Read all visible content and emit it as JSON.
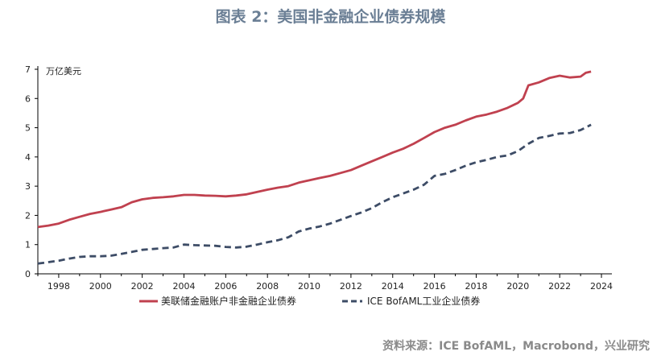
{
  "header": {
    "title": "图表 2：美国非金融企业债券规模"
  },
  "source": "资料来源：ICE BofAML，Macrobond，兴业研究",
  "colors": {
    "series1": "#c0414f",
    "series2": "#3d4c66",
    "axis": "#000000",
    "title": "#6b7f95"
  },
  "chart_data": {
    "type": "line",
    "title": "图表 2：美国非金融企业债券规模",
    "ylabel": "万亿美元",
    "xlabel": "",
    "xlim": [
      1997,
      2024.5
    ],
    "ylim": [
      0,
      7
    ],
    "yticks": [
      "0",
      "1",
      "2",
      "3",
      "4",
      "5",
      "6",
      "7"
    ],
    "xticks": [
      "1998",
      "2000",
      "2002",
      "2004",
      "2006",
      "2008",
      "2010",
      "2012",
      "2014",
      "2016",
      "2018",
      "2020",
      "2022",
      "2024"
    ],
    "grid": false,
    "legend_position": "bottom",
    "series": [
      {
        "name": "美联储金融账户非金融企业债券",
        "style": "solid",
        "x": [
          1997.0,
          1997.5,
          1998.0,
          1998.5,
          1999.0,
          1999.5,
          2000.0,
          2000.5,
          2001.0,
          2001.5,
          2002.0,
          2002.5,
          2003.0,
          2003.5,
          2004.0,
          2004.5,
          2005.0,
          2005.5,
          2006.0,
          2006.5,
          2007.0,
          2007.5,
          2008.0,
          2008.5,
          2009.0,
          2009.5,
          2010.0,
          2010.5,
          2011.0,
          2011.5,
          2012.0,
          2012.5,
          2013.0,
          2013.5,
          2014.0,
          2014.5,
          2015.0,
          2015.5,
          2016.0,
          2016.5,
          2017.0,
          2017.5,
          2018.0,
          2018.5,
          2019.0,
          2019.5,
          2020.0,
          2020.25,
          2020.5,
          2021.0,
          2021.5,
          2022.0,
          2022.5,
          2023.0,
          2023.25,
          2023.5
        ],
        "values": [
          1.6,
          1.65,
          1.72,
          1.85,
          1.95,
          2.05,
          2.12,
          2.2,
          2.28,
          2.45,
          2.55,
          2.6,
          2.62,
          2.65,
          2.7,
          2.7,
          2.68,
          2.67,
          2.65,
          2.68,
          2.72,
          2.8,
          2.88,
          2.95,
          3.0,
          3.12,
          3.2,
          3.28,
          3.35,
          3.45,
          3.55,
          3.7,
          3.85,
          4.0,
          4.15,
          4.28,
          4.45,
          4.65,
          4.85,
          5.0,
          5.1,
          5.25,
          5.38,
          5.45,
          5.55,
          5.68,
          5.85,
          6.0,
          6.45,
          6.55,
          6.7,
          6.78,
          6.72,
          6.75,
          6.88,
          6.92
        ]
      },
      {
        "name": "ICE BofAML工业企业债券",
        "style": "dashed",
        "x": [
          1997.0,
          1997.5,
          1998.0,
          1998.5,
          1999.0,
          1999.5,
          2000.0,
          2000.5,
          2001.0,
          2001.5,
          2002.0,
          2002.5,
          2003.0,
          2003.5,
          2004.0,
          2004.5,
          2005.0,
          2005.5,
          2006.0,
          2006.5,
          2007.0,
          2007.5,
          2008.0,
          2008.5,
          2009.0,
          2009.5,
          2010.0,
          2010.5,
          2011.0,
          2011.5,
          2012.0,
          2012.5,
          2013.0,
          2013.5,
          2014.0,
          2014.5,
          2015.0,
          2015.5,
          2016.0,
          2016.5,
          2017.0,
          2017.5,
          2018.0,
          2018.5,
          2019.0,
          2019.5,
          2020.0,
          2020.5,
          2021.0,
          2021.5,
          2022.0,
          2022.5,
          2023.0,
          2023.5
        ],
        "values": [
          0.35,
          0.4,
          0.45,
          0.52,
          0.58,
          0.6,
          0.6,
          0.62,
          0.68,
          0.75,
          0.82,
          0.85,
          0.88,
          0.9,
          1.0,
          0.98,
          0.97,
          0.96,
          0.92,
          0.9,
          0.93,
          1.0,
          1.08,
          1.15,
          1.25,
          1.45,
          1.55,
          1.62,
          1.72,
          1.85,
          1.98,
          2.1,
          2.25,
          2.45,
          2.62,
          2.75,
          2.88,
          3.05,
          3.35,
          3.42,
          3.55,
          3.7,
          3.82,
          3.9,
          4.0,
          4.05,
          4.2,
          4.45,
          4.65,
          4.72,
          4.8,
          4.82,
          4.92,
          5.1
        ]
      }
    ]
  }
}
